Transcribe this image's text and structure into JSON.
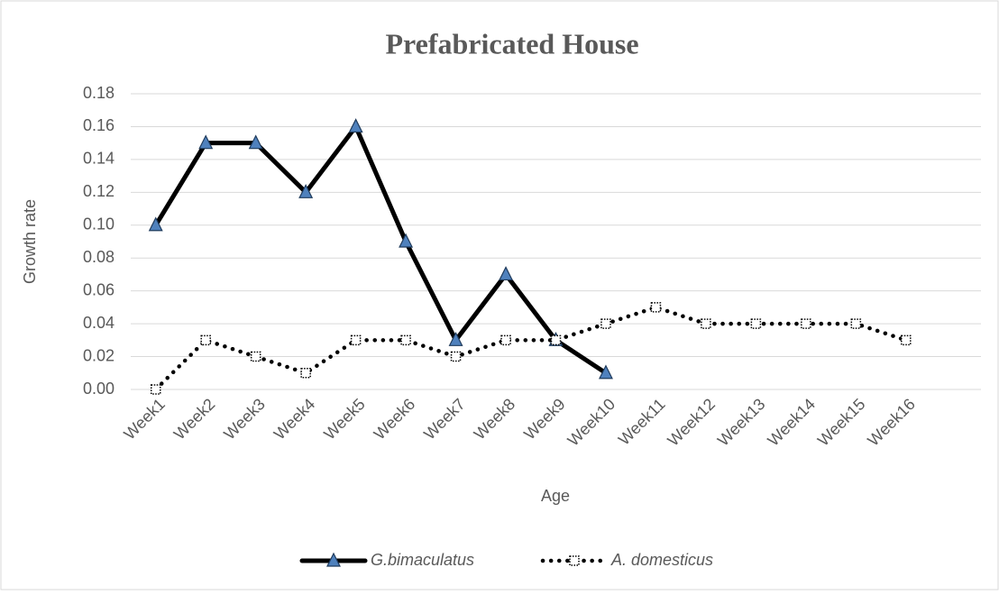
{
  "chart_data": {
    "type": "line",
    "title": "Prefabricated House",
    "x_label": "Age",
    "y_label": "Growth rate",
    "categories": [
      "Week1",
      "Week2",
      "Week3",
      "Week4",
      "Week5",
      "Week6",
      "Week7",
      "Week8",
      "Week9",
      "Week10",
      "Week11",
      "Week12",
      "Week13",
      "Week14",
      "Week15",
      "Week16",
      null
    ],
    "series": [
      {
        "name": "G.bimaculatus",
        "color": "#000000",
        "marker_color": "#4f81bd",
        "values": [
          0.1,
          0.15,
          0.15,
          0.12,
          0.16,
          0.09,
          0.03,
          0.07,
          0.03,
          0.01,
          null,
          null,
          null,
          null,
          null,
          null,
          null
        ]
      },
      {
        "name": "A. domesticus",
        "color": "#000000",
        "marker_color": "#ffffff",
        "values": [
          0,
          0.03,
          0.02,
          0.01,
          0.03,
          0.03,
          0.02,
          0.03,
          0.03,
          0.04,
          0.05,
          0.04,
          0.04,
          0.04,
          0.04,
          0.03,
          null
        ]
      }
    ],
    "ylim": [
      0,
      0.18
    ],
    "yticks": [
      {
        "value": 0,
        "label": "0.00"
      },
      {
        "value": 0.02,
        "label": "0.02"
      },
      {
        "value": 0.04,
        "label": "0.04"
      },
      {
        "value": 0.06,
        "label": "0.06"
      },
      {
        "value": 0.08,
        "label": "0.08"
      },
      {
        "value": 0.1,
        "label": "0.10"
      },
      {
        "value": 0.12,
        "label": "0.12"
      },
      {
        "value": 0.14,
        "label": "0.14"
      },
      {
        "value": 0.16,
        "label": "0.16"
      },
      {
        "value": 0.18,
        "label": "0.18"
      }
    ],
    "grid": true,
    "legend": "bottom"
  }
}
